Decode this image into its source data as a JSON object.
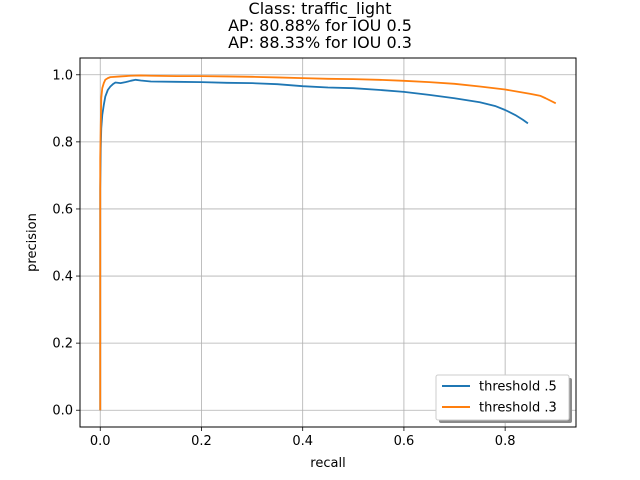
{
  "chart_data": {
    "type": "line",
    "title": [
      "Class: traffic_light",
      "AP: 80.88% for IOU 0.5",
      "AP: 88.33% for IOU 0.3"
    ],
    "xlabel": "recall",
    "ylabel": "precision",
    "xlim": [
      -0.04,
      0.94
    ],
    "ylim": [
      -0.05,
      1.05
    ],
    "xticks": [
      0.0,
      0.2,
      0.4,
      0.6,
      0.8
    ],
    "xtick_labels": [
      "0.0",
      "0.2",
      "0.4",
      "0.6",
      "0.8"
    ],
    "yticks": [
      0.0,
      0.2,
      0.4,
      0.6,
      0.8,
      1.0
    ],
    "ytick_labels": [
      "0.0",
      "0.2",
      "0.4",
      "0.6",
      "0.8",
      "1.0"
    ],
    "grid": true,
    "legend_position": "lower-right",
    "series": [
      {
        "name": "threshold .5",
        "color": "#1f77b4",
        "points": [
          [
            0.0,
            0.0
          ],
          [
            0.0,
            0.56
          ],
          [
            0.0,
            0.66
          ],
          [
            0.001,
            0.78
          ],
          [
            0.002,
            0.84
          ],
          [
            0.004,
            0.88
          ],
          [
            0.007,
            0.91
          ],
          [
            0.01,
            0.935
          ],
          [
            0.015,
            0.955
          ],
          [
            0.02,
            0.965
          ],
          [
            0.025,
            0.972
          ],
          [
            0.03,
            0.977
          ],
          [
            0.04,
            0.975
          ],
          [
            0.05,
            0.978
          ],
          [
            0.06,
            0.982
          ],
          [
            0.07,
            0.985
          ],
          [
            0.08,
            0.983
          ],
          [
            0.1,
            0.98
          ],
          [
            0.15,
            0.979
          ],
          [
            0.2,
            0.978
          ],
          [
            0.25,
            0.976
          ],
          [
            0.3,
            0.975
          ],
          [
            0.35,
            0.972
          ],
          [
            0.4,
            0.966
          ],
          [
            0.45,
            0.962
          ],
          [
            0.5,
            0.96
          ],
          [
            0.55,
            0.955
          ],
          [
            0.6,
            0.949
          ],
          [
            0.65,
            0.94
          ],
          [
            0.7,
            0.93
          ],
          [
            0.75,
            0.918
          ],
          [
            0.78,
            0.907
          ],
          [
            0.8,
            0.895
          ],
          [
            0.82,
            0.88
          ],
          [
            0.835,
            0.866
          ],
          [
            0.845,
            0.855
          ]
        ]
      },
      {
        "name": "threshold .3",
        "color": "#ff7f0e",
        "points": [
          [
            0.0,
            0.0
          ],
          [
            0.0,
            0.75
          ],
          [
            0.001,
            0.85
          ],
          [
            0.002,
            0.93
          ],
          [
            0.004,
            0.96
          ],
          [
            0.007,
            0.975
          ],
          [
            0.01,
            0.985
          ],
          [
            0.015,
            0.99
          ],
          [
            0.02,
            0.993
          ],
          [
            0.04,
            0.995
          ],
          [
            0.06,
            0.997
          ],
          [
            0.08,
            0.998
          ],
          [
            0.1,
            0.997
          ],
          [
            0.15,
            0.996
          ],
          [
            0.2,
            0.996
          ],
          [
            0.25,
            0.995
          ],
          [
            0.3,
            0.994
          ],
          [
            0.35,
            0.992
          ],
          [
            0.4,
            0.99
          ],
          [
            0.45,
            0.988
          ],
          [
            0.5,
            0.987
          ],
          [
            0.55,
            0.985
          ],
          [
            0.6,
            0.982
          ],
          [
            0.65,
            0.978
          ],
          [
            0.7,
            0.973
          ],
          [
            0.75,
            0.965
          ],
          [
            0.8,
            0.956
          ],
          [
            0.85,
            0.943
          ],
          [
            0.87,
            0.937
          ],
          [
            0.88,
            0.93
          ],
          [
            0.9,
            0.915
          ]
        ]
      }
    ]
  }
}
